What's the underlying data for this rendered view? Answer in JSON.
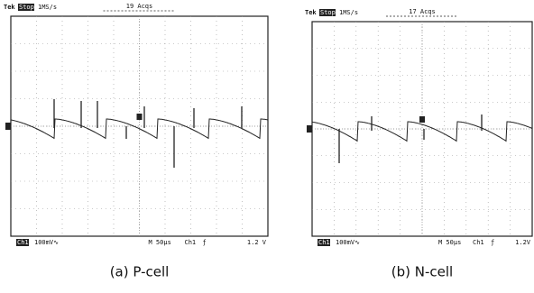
{
  "panels": [
    {
      "brand": "Tek",
      "state": "Stop",
      "rate": "1MS/s",
      "acqs": "19 Acqs",
      "channel": "Ch1",
      "scale": "100mV∿",
      "timebase": "M 50μs",
      "trigger_source": "Ch1",
      "trigger_slope": "ƒ",
      "trigger_level": "1.2 V",
      "caption": "(a) P-cell"
    },
    {
      "brand": "Tek",
      "state": "Stop",
      "rate": "1MS/s",
      "acqs": "17 Acqs",
      "channel": "Ch1",
      "scale": "100mV∿",
      "timebase": "M 50μs",
      "trigger_source": "Ch1",
      "trigger_slope": "ƒ",
      "trigger_level": "1.2V",
      "caption": "(b) N-cell"
    }
  ]
}
